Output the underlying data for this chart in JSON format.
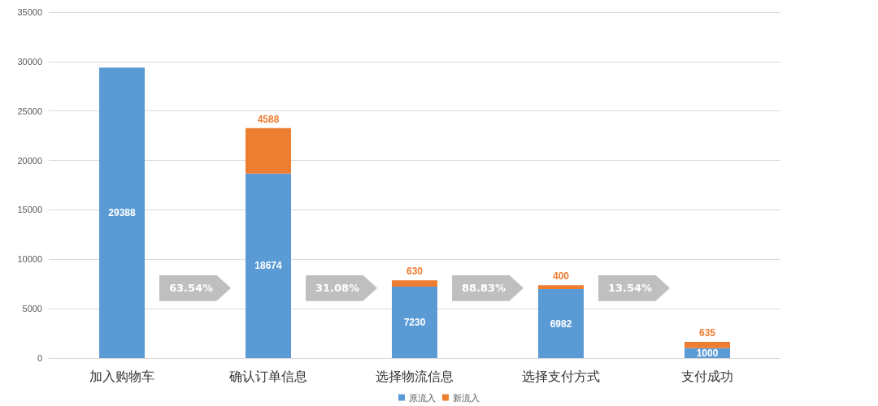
{
  "chart_data": {
    "type": "bar",
    "stacked": true,
    "categories": [
      "加入购物车",
      "确认订单信息",
      "选择物流信息",
      "选择支付方式",
      "支付成功"
    ],
    "series": [
      {
        "name": "原流入",
        "color": "#5b9bd5",
        "values": [
          29388,
          18674,
          7230,
          6982,
          1000
        ]
      },
      {
        "name": "新流入",
        "color": "#ed7d31",
        "values": [
          null,
          4588,
          630,
          400,
          635
        ]
      }
    ],
    "ylim": [
      0,
      35000
    ],
    "yticks": [
      0,
      5000,
      10000,
      15000,
      20000,
      25000,
      30000,
      35000
    ],
    "grid": "y",
    "legend": "bottom",
    "data_labels": true,
    "annotations": [
      "63.54%",
      "31.08%",
      "88.83%",
      "13.54%"
    ]
  }
}
